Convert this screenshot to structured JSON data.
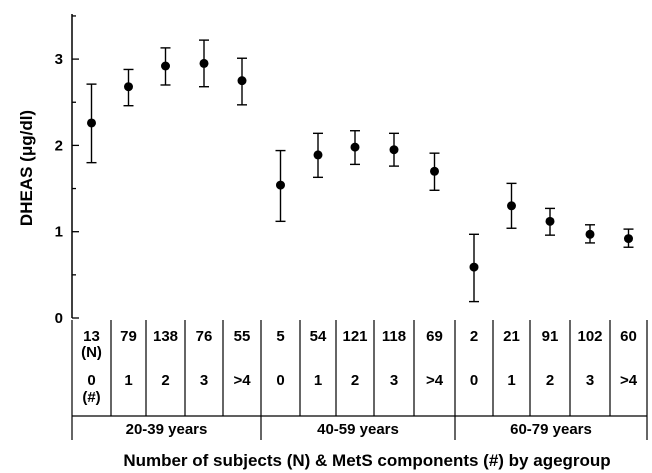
{
  "chart_data": {
    "type": "scatter",
    "ylabel": "DHEAS (μg/dl)",
    "xlabel": "Number of subjects (N) & MetS components (#) by agegroup",
    "ylim": [
      0,
      3.5
    ],
    "yticks": [
      "0",
      "1",
      "2",
      "3"
    ],
    "errorbars": true,
    "grid": false,
    "points": [
      {
        "n": "13",
        "n_unit": "(N)",
        "c": "0",
        "c_unit": "(#)",
        "mean": 2.26,
        "lo": 1.8,
        "hi": 2.71
      },
      {
        "n": "79",
        "c": "1",
        "mean": 2.68,
        "lo": 2.46,
        "hi": 2.88
      },
      {
        "n": "138",
        "c": "2",
        "mean": 2.92,
        "lo": 2.7,
        "hi": 3.13
      },
      {
        "n": "76",
        "c": "3",
        "mean": 2.95,
        "lo": 2.68,
        "hi": 3.22
      },
      {
        "n": "55",
        "c": ">4",
        "mean": 2.75,
        "lo": 2.47,
        "hi": 3.01
      },
      {
        "n": "5",
        "c": "0",
        "mean": 1.54,
        "lo": 1.12,
        "hi": 1.94
      },
      {
        "n": "54",
        "c": "1",
        "mean": 1.89,
        "lo": 1.63,
        "hi": 2.14
      },
      {
        "n": "121",
        "c": "2",
        "mean": 1.98,
        "lo": 1.78,
        "hi": 2.17
      },
      {
        "n": "118",
        "c": "3",
        "mean": 1.95,
        "lo": 1.76,
        "hi": 2.14
      },
      {
        "n": "69",
        "c": ">4",
        "mean": 1.7,
        "lo": 1.48,
        "hi": 1.91
      },
      {
        "n": "2",
        "c": "0",
        "mean": 0.59,
        "lo": 0.19,
        "hi": 0.97
      },
      {
        "n": "21",
        "c": "1",
        "mean": 1.3,
        "lo": 1.04,
        "hi": 1.56
      },
      {
        "n": "91",
        "c": "2",
        "mean": 1.12,
        "lo": 0.96,
        "hi": 1.27
      },
      {
        "n": "102",
        "c": "3",
        "mean": 0.97,
        "lo": 0.87,
        "hi": 1.08
      },
      {
        "n": "60",
        "c": ">4",
        "mean": 0.92,
        "lo": 0.82,
        "hi": 1.03
      }
    ],
    "groups": [
      "20-39 years",
      "40-59 years",
      "60-79 years"
    ]
  }
}
